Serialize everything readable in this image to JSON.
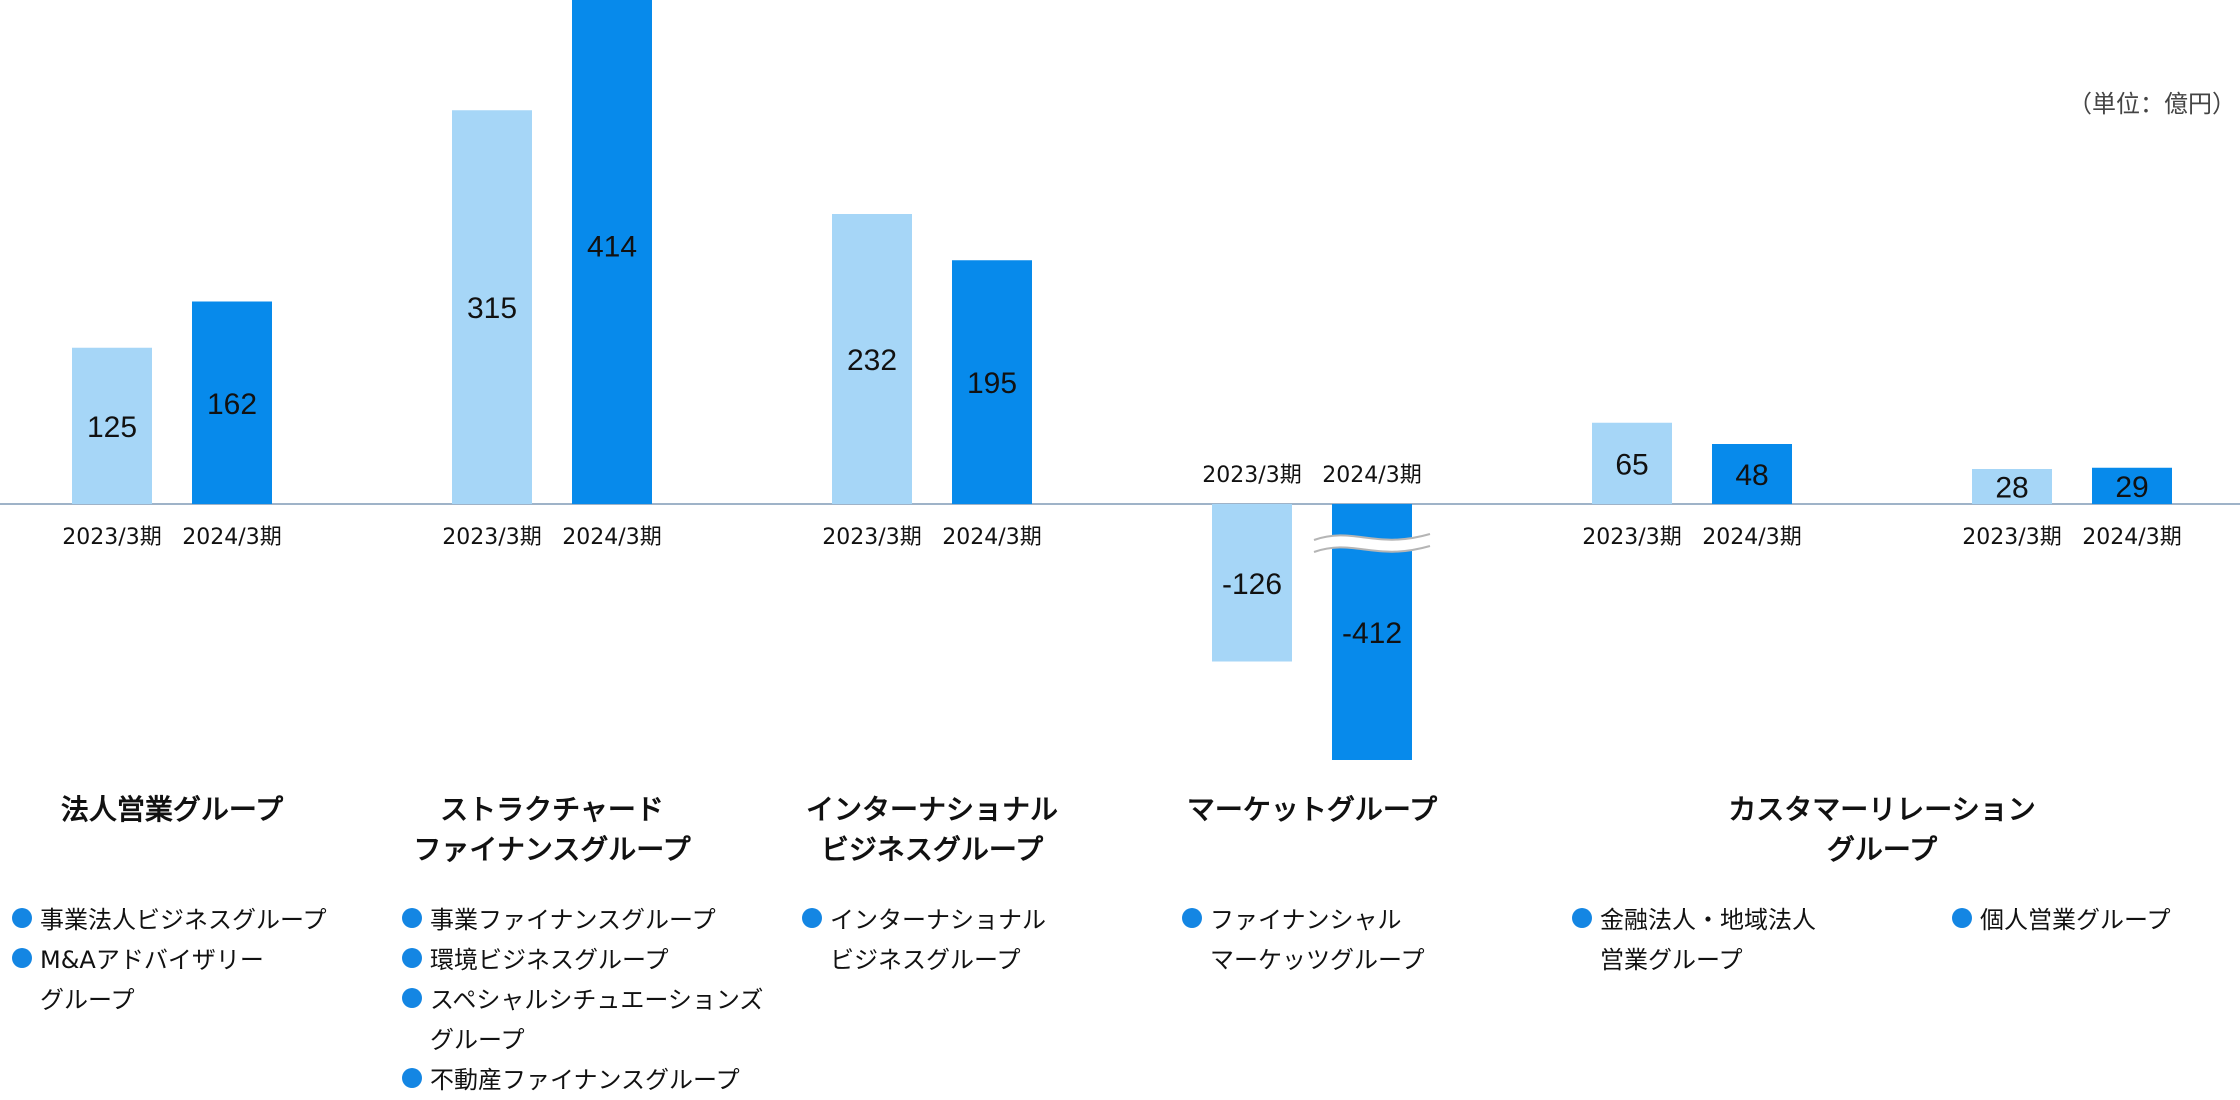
{
  "unit": "（単位：億円）",
  "colors": {
    "fy2023": "#a6d6f7",
    "fy2024": "#078aeb",
    "baseline": "#9fb3c8",
    "dot": "#1486e3"
  },
  "chart_data": {
    "type": "bar",
    "title": "",
    "xlabel": "",
    "ylabel": "",
    "categories": [
      "法人営業グループ",
      "ストラクチャードファイナンスグループ",
      "インターナショナルビジネスグループ",
      "マーケットグループ",
      "金融法人・地域法人営業グループ",
      "個人営業グループ"
    ],
    "series": [
      {
        "name": "2023/3期",
        "values": [
          125,
          315,
          232,
          -126,
          65,
          28
        ]
      },
      {
        "name": "2024/3期",
        "values": [
          162,
          414,
          195,
          -412,
          48,
          29
        ]
      }
    ],
    "axis_break": {
      "category_index": 3,
      "series_index": 1
    },
    "grid": false,
    "legend": "none"
  },
  "groups": [
    {
      "title_lines": [
        "法人営業グループ"
      ],
      "subs": [
        [
          "事業法人ビジネスグループ"
        ],
        [
          "M&Aアドバイザリー",
          "グループ"
        ]
      ]
    },
    {
      "title_lines": [
        "ストラクチャード",
        "ファイナンスグループ"
      ],
      "subs": [
        [
          "事業ファイナンスグループ"
        ],
        [
          "環境ビジネスグループ"
        ],
        [
          "スペシャルシチュエーションズ",
          "グループ"
        ],
        [
          "不動産ファイナンスグループ"
        ]
      ]
    },
    {
      "title_lines": [
        "インターナショナル",
        "ビジネスグループ"
      ],
      "subs": [
        [
          "インターナショナル",
          "ビジネスグループ"
        ]
      ]
    },
    {
      "title_lines": [
        "マーケットグループ"
      ],
      "subs": [
        [
          "ファイナンシャル",
          "マーケッツグループ"
        ]
      ]
    },
    {
      "title_lines": [
        "カスタマーリレーション",
        "グループ"
      ],
      "subs": []
    }
  ],
  "extra_subs": [
    [
      [
        "金融法人・地域法人",
        "営業グループ"
      ]
    ],
    [
      [
        "個人営業グループ"
      ]
    ]
  ]
}
